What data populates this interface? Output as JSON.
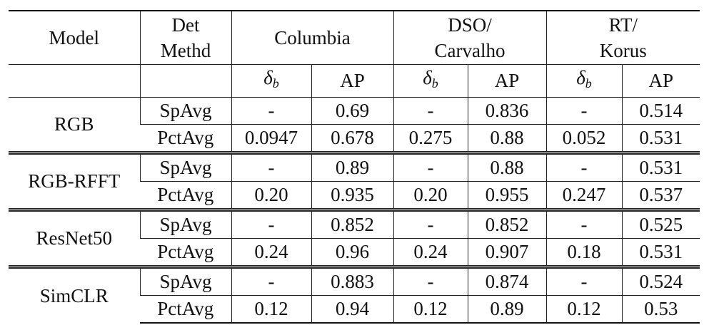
{
  "header": {
    "model": "Model",
    "det_line1": "Det",
    "det_line2": "Methd",
    "datasets": [
      {
        "line1": "Columbia",
        "line2": ""
      },
      {
        "line1": "DSO/",
        "line2": "Carvalho"
      },
      {
        "line1": "RT/",
        "line2": "Korus"
      }
    ],
    "metric_delta": "δ",
    "metric_delta_sub": "b",
    "metric_ap": "AP"
  },
  "rows": [
    {
      "model": "RGB",
      "spavg": {
        "method": "SpAvg",
        "values": [
          "-",
          "0.69",
          "-",
          "0.836",
          "-",
          "0.514"
        ]
      },
      "pctavg": {
        "method": "PctAvg",
        "values": [
          "0.0947",
          "0.678",
          "0.275",
          "0.88",
          "0.052",
          "0.531"
        ]
      }
    },
    {
      "model": "RGB-RFFT",
      "spavg": {
        "method": "SpAvg",
        "values": [
          "-",
          "0.89",
          "-",
          "0.88",
          "-",
          "0.531"
        ]
      },
      "pctavg": {
        "method": "PctAvg",
        "values": [
          "0.20",
          "0.935",
          "0.20",
          "0.955",
          "0.247",
          "0.537"
        ]
      }
    },
    {
      "model": "ResNet50",
      "spavg": {
        "method": "SpAvg",
        "values": [
          "-",
          "0.852",
          "-",
          "0.852",
          "-",
          "0.525"
        ]
      },
      "pctavg": {
        "method": "PctAvg",
        "values": [
          "0.24",
          "0.96",
          "0.24",
          "0.907",
          "0.18",
          "0.531"
        ]
      }
    },
    {
      "model": "SimCLR",
      "spavg": {
        "method": "SpAvg",
        "values": [
          "-",
          "0.883",
          "-",
          "0.874",
          "-",
          "0.524"
        ]
      },
      "pctavg": {
        "method": "PctAvg",
        "values": [
          "0.12",
          "0.94",
          "0.12",
          "0.89",
          "0.12",
          "0.53"
        ]
      }
    }
  ]
}
